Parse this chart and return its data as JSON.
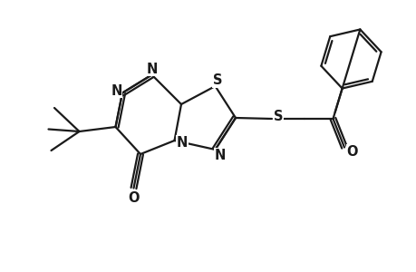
{
  "background_color": "#ffffff",
  "line_color": "#1a1a1a",
  "line_width": 1.6,
  "dbo": 0.07,
  "font_size": 10.5,
  "fig_width": 4.6,
  "fig_height": 3.0,
  "dpi": 100,
  "xlim": [
    0,
    9.2
  ],
  "ylim": [
    0,
    6.0
  ]
}
